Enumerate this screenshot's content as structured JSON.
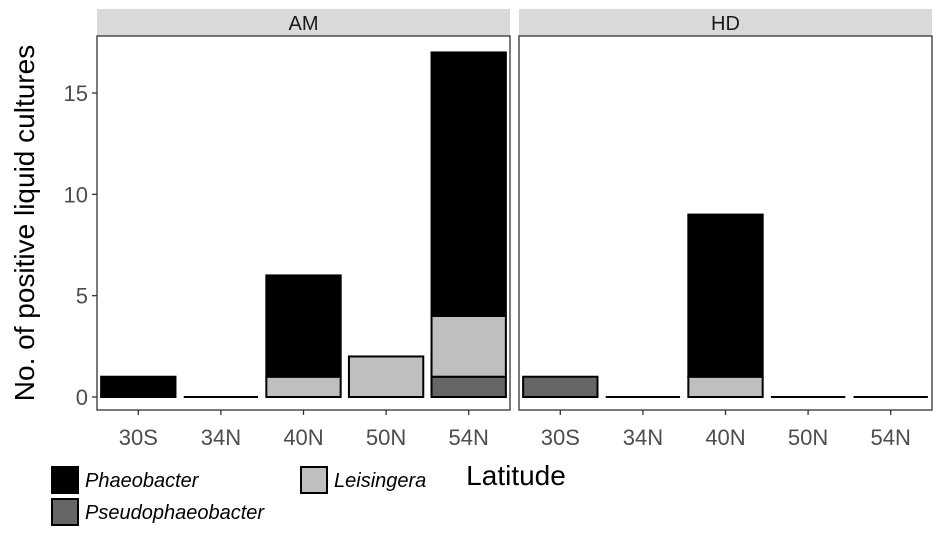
{
  "chart_data": {
    "type": "bar",
    "stacked": true,
    "facets": [
      "AM",
      "HD"
    ],
    "categories": [
      "30S",
      "34N",
      "40N",
      "50N",
      "54N"
    ],
    "xlabel": "Latitude",
    "ylabel": "No. of positive liquid cultures",
    "ylim": [
      0,
      17.8
    ],
    "yticks": [
      0,
      5,
      10,
      15
    ],
    "grid": false,
    "legend_position": "bottom-left",
    "series": [
      {
        "name": "Pseudophaeobacter",
        "color": "#666666",
        "values": {
          "AM": [
            0,
            0,
            0,
            0,
            1
          ],
          "HD": [
            1,
            0,
            0,
            0,
            0
          ]
        }
      },
      {
        "name": "Leisingera",
        "color": "#bfbfbf",
        "values": {
          "AM": [
            0,
            0,
            1,
            2,
            3
          ],
          "HD": [
            0,
            0,
            1,
            0,
            0
          ]
        }
      },
      {
        "name": "Phaeobacter",
        "color": "#000000",
        "values": {
          "AM": [
            1,
            0,
            5,
            0,
            13
          ],
          "HD": [
            0,
            0,
            8,
            0,
            0
          ]
        }
      }
    ],
    "legend_order": [
      "Phaeobacter",
      "Leisingera",
      "Pseudophaeobacter"
    ]
  }
}
